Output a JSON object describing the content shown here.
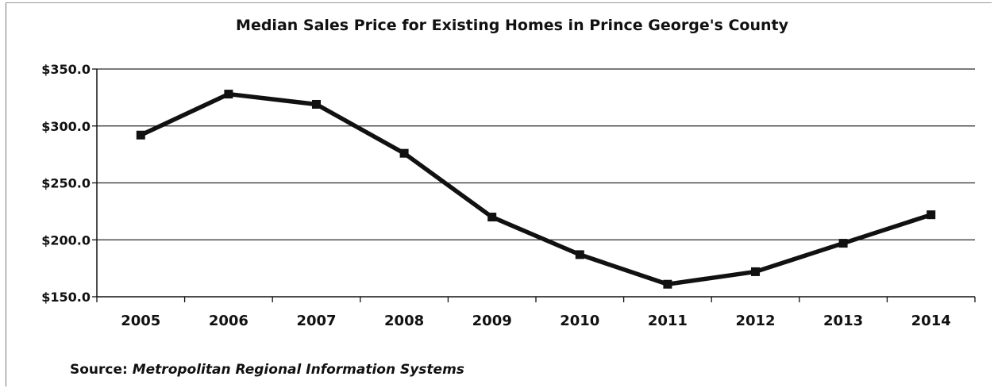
{
  "chart_data": {
    "type": "line",
    "title": "Median Sales Price for Existing Homes in Prince George's County",
    "xlabel": "",
    "ylabel": "",
    "categories": [
      "2005",
      "2006",
      "2007",
      "2008",
      "2009",
      "2010",
      "2011",
      "2012",
      "2013",
      "2014"
    ],
    "values": [
      292.0,
      328.0,
      319.0,
      276.0,
      220.0,
      187.0,
      161.0,
      172.0,
      197.0,
      222.0
    ],
    "ylim": [
      150,
      350
    ],
    "yticks": [
      350,
      300,
      250,
      200,
      150
    ],
    "ytick_labels": [
      "$350.0",
      "$300.0",
      "$250.0",
      "$200.0",
      "$150.0"
    ],
    "grid": "horizontal",
    "legend": "none",
    "marker": "square",
    "line_color": "#111111",
    "source_prefix": "Source: ",
    "source_name": "Metropolitan Regional Information Systems"
  }
}
